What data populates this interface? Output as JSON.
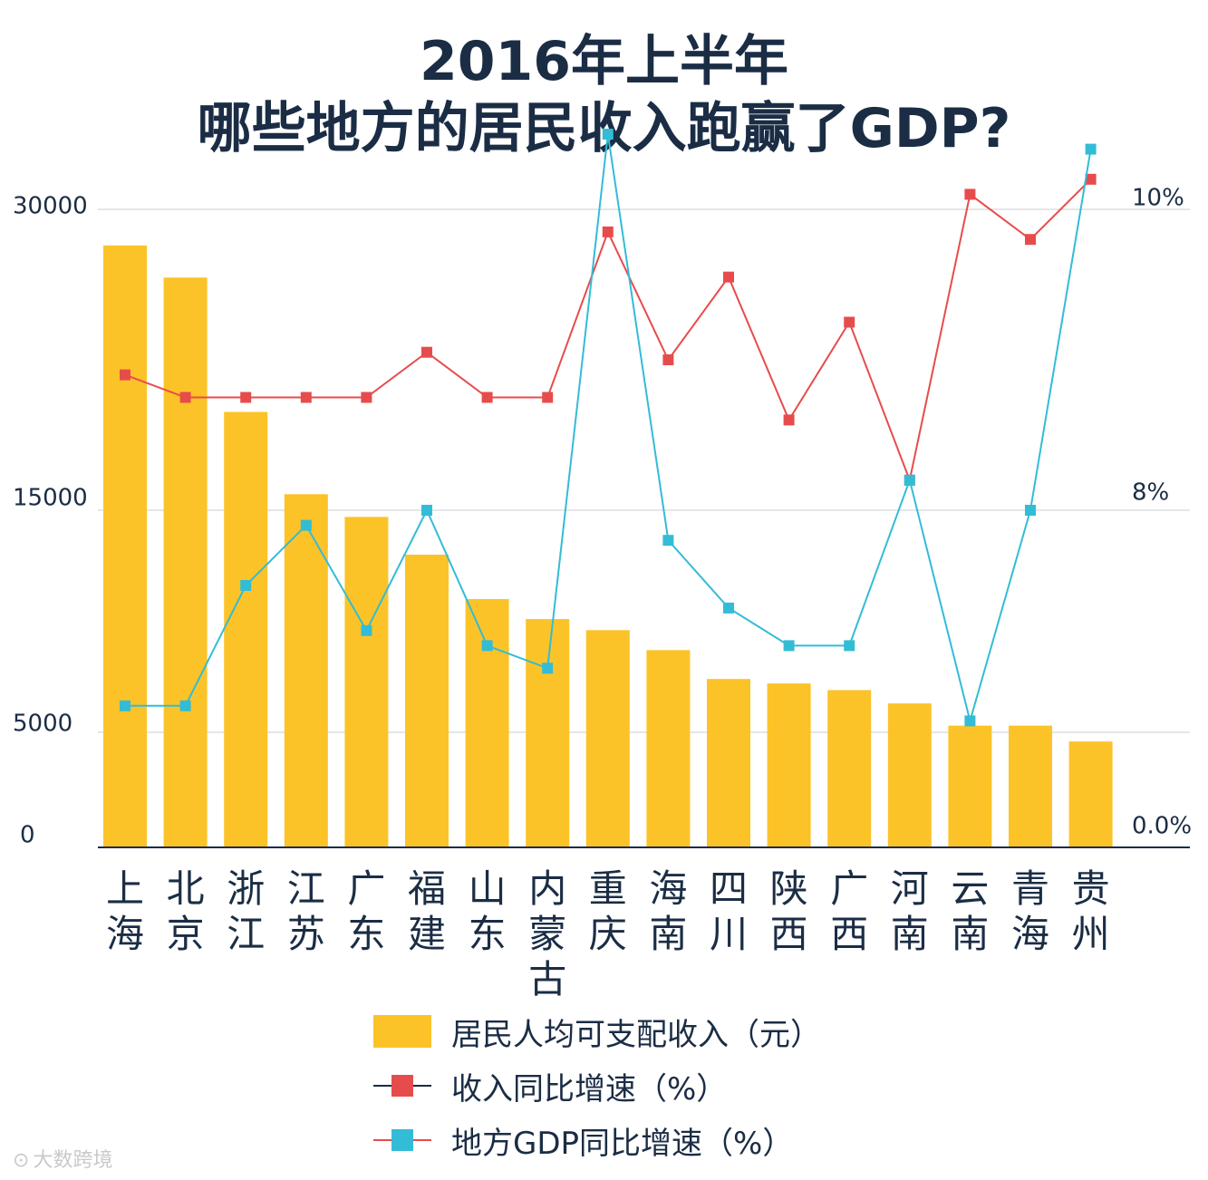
{
  "title": {
    "line1": "2016年上半年",
    "line2": "哪些地方的居民收入跑赢了GDP?"
  },
  "colors": {
    "bar": "#fcc328",
    "income_growth": "#e74c4c",
    "gdp_growth": "#33bcd6",
    "axis": "#1b2d45",
    "grid": "#c8ccd2",
    "tick_text": "#1b2d45",
    "title": "#1b2d45"
  },
  "legend": {
    "items": [
      {
        "label": "居民人均可支配收入（元）",
        "type": "bar",
        "color": "#fcc328"
      },
      {
        "label": "收入同比增速（%）",
        "type": "line",
        "marker_color": "#e74c4c",
        "line_color": "#1b2d45"
      },
      {
        "label": "地方GDP同比增速（%）",
        "type": "line",
        "marker_color": "#33bcd6",
        "line_color": "#e74c4c"
      }
    ]
  },
  "watermark": {
    "icon": "logo-icon",
    "text": "大数跨境"
  },
  "chart_data": {
    "type": "bar",
    "categories": [
      "上海",
      "北京",
      "浙江",
      "江苏",
      "广东",
      "福建",
      "山东",
      "内蒙古",
      "重庆",
      "海南",
      "四川",
      "陕西",
      "广西",
      "河南",
      "云南",
      "青海",
      "贵州"
    ],
    "series": [
      {
        "name": "居民人均可支配收入（元）",
        "type": "bar",
        "axis": "left",
        "values": [
          28200,
          26600,
          19900,
          15800,
          14700,
          13000,
          11000,
          10100,
          9600,
          8700,
          7400,
          7200,
          6900,
          6300,
          5300,
          5300,
          4600
        ]
      },
      {
        "name": "收入同比增速（%）",
        "type": "line",
        "axis": "right",
        "values": [
          8.9,
          8.75,
          8.75,
          8.75,
          8.75,
          9.05,
          8.75,
          8.75,
          9.85,
          9.0,
          9.55,
          8.6,
          9.25,
          8.2,
          10.1,
          9.8,
          10.2
        ]
      },
      {
        "name": "地方GDP同比增速（%）",
        "type": "line",
        "axis": "right",
        "values": [
          6.7,
          6.7,
          7.5,
          7.9,
          7.2,
          8.0,
          7.1,
          6.95,
          10.5,
          7.8,
          7.35,
          7.1,
          7.1,
          8.2,
          6.6,
          8.0,
          10.4
        ]
      }
    ],
    "left_axis": {
      "ticks": [
        0,
        5000,
        15000,
        30000
      ],
      "tick_labels": [
        "0",
        "5000",
        "15000",
        "30000"
      ],
      "ylim": [
        0,
        30000
      ]
    },
    "right_axis": {
      "ticks": [
        0,
        8,
        10
      ],
      "tick_labels": [
        "0.0%",
        "8%",
        "10%"
      ]
    },
    "grid": true,
    "legend_position": "bottom"
  }
}
